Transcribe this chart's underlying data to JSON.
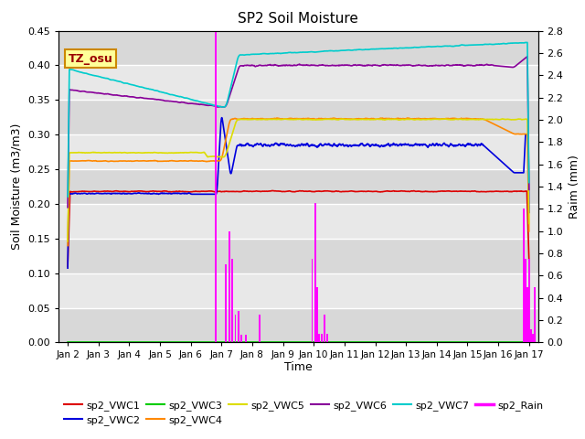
{
  "title": "SP2 Soil Moisture",
  "xlabel": "Time",
  "ylabel_left": "Soil Moisture (m3/m3)",
  "ylabel_right": "Raim (mm)",
  "ylim_left": [
    0.0,
    0.45
  ],
  "ylim_right": [
    0.0,
    2.8
  ],
  "xtick_labels": [
    "Jan 2",
    "Jan 3",
    "Jan 4",
    "Jan 5",
    "Jan 6",
    "Jan 7",
    "Jan 8",
    "Jan 9",
    "Jan 10",
    "Jan 11",
    "Jan 12",
    "Jan 13",
    "Jan 14",
    "Jan 15",
    "Jan 16",
    "Jan 17"
  ],
  "colors": {
    "sp2_VWC1": "#dd0000",
    "sp2_VWC2": "#0000dd",
    "sp2_VWC3": "#00cc00",
    "sp2_VWC4": "#ff8800",
    "sp2_VWC5": "#dddd00",
    "sp2_VWC6": "#880099",
    "sp2_VWC7": "#00cccc",
    "sp2_Rain": "#ff00ff"
  },
  "annotation_text": "TZ_osu",
  "background_color": "#e0e0e0",
  "stripe_color": "#cccccc",
  "white_stripe": "#f0f0f0"
}
